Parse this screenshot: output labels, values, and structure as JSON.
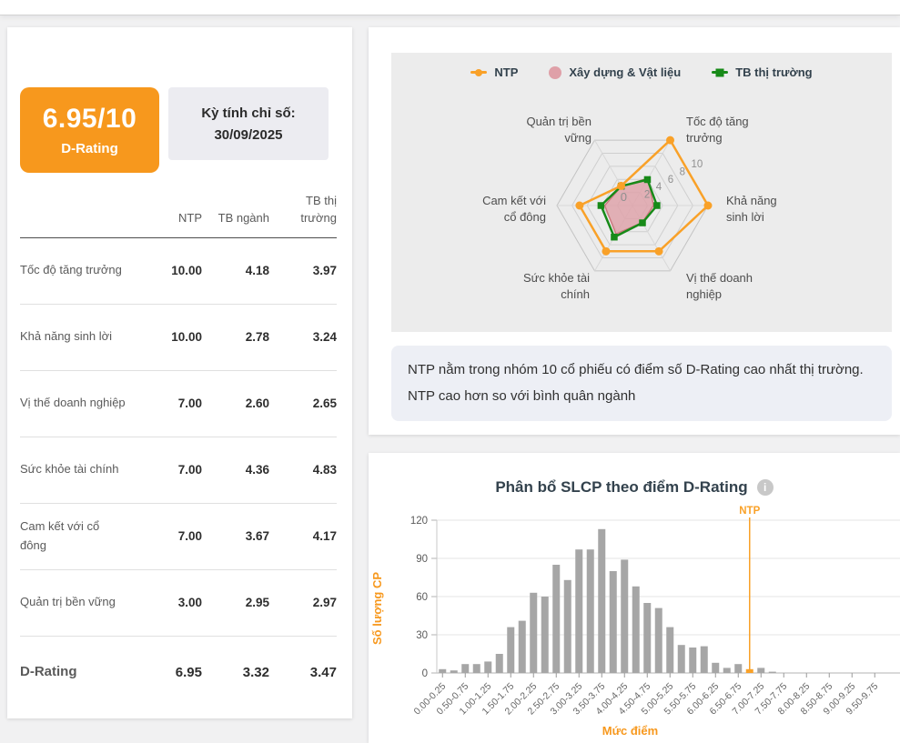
{
  "colors": {
    "accent_orange": "#F7981D",
    "series_orange": "#F9A128",
    "series_pink": "#DFA0A8",
    "series_green": "#178A18",
    "bar_gray": "#A6A6A6",
    "panel_gray": "#ECECEC",
    "note_bg": "#EDEFF5"
  },
  "icons": {
    "info": "i"
  },
  "rating_card": {
    "score": "6.95/10",
    "label": "D-Rating",
    "period_label": "Kỳ tính chỉ số:",
    "period_date": "30/09/2025"
  },
  "table": {
    "col_headers": [
      "NTP",
      "TB ngành",
      "TB thị trường"
    ],
    "rows": [
      {
        "label": "Tốc độ tăng trưởng",
        "values": [
          "10.00",
          "4.18",
          "3.97"
        ]
      },
      {
        "label": "Khả năng sinh lời",
        "values": [
          "10.00",
          "2.78",
          "3.24"
        ]
      },
      {
        "label": "Vị thế doanh nghiệp",
        "values": [
          "7.00",
          "2.60",
          "2.65"
        ]
      },
      {
        "label": "Sức khỏe tài chính",
        "values": [
          "7.00",
          "4.36",
          "4.83"
        ]
      },
      {
        "label": "Cam kết với cổ đông",
        "values": [
          "7.00",
          "3.67",
          "4.17"
        ]
      },
      {
        "label": "Quản trị bền vững",
        "values": [
          "3.00",
          "2.95",
          "2.97"
        ]
      }
    ],
    "footer": {
      "label": "D-Rating",
      "values": [
        "6.95",
        "3.32",
        "3.47"
      ]
    }
  },
  "radar_section": {
    "legend": [
      {
        "name": "NTP",
        "color": "#F9A128",
        "marker": "line-dot"
      },
      {
        "name": "Xây dựng & Vật liệu",
        "color": "#DFA0A8",
        "marker": "circle"
      },
      {
        "name": "TB thị trường",
        "color": "#178A18",
        "marker": "line-square"
      }
    ],
    "note": "NTP nằm trong nhóm 10 cổ phiếu có điểm số D-Rating cao nhất thị trường. NTP cao hơn so với bình quân ngành"
  },
  "chart_data": [
    {
      "type": "radar",
      "axes": [
        "Tốc độ tăng trưởng",
        "Khả năng sinh lời",
        "Vị thế doanh nghiệp",
        "Sức khỏe tài chính",
        "Cam kết với cổ đông",
        "Quản trị bền vững"
      ],
      "axis_label_lines": [
        [
          "Tốc độ tăng",
          "trưởng"
        ],
        [
          "Khả năng",
          "sinh lời"
        ],
        [
          "Vị thế doanh",
          "nghiệp"
        ],
        [
          "Sức khỏe tài",
          "chính"
        ],
        [
          "Cam kết với",
          "cổ đông"
        ],
        [
          "Quản trị bền",
          "vững"
        ]
      ],
      "scale_ticks": [
        0,
        2,
        4,
        6,
        8,
        10
      ],
      "max": 10,
      "series": [
        {
          "name": "Xây dựng & Vật liệu",
          "color": "#DFA0A8",
          "stroke": "#CC7A7F",
          "values": [
            4.18,
            2.78,
            2.6,
            4.36,
            3.67,
            2.95
          ],
          "fill": true
        },
        {
          "name": "TB thị trường",
          "color": "#178A18",
          "values": [
            3.97,
            3.24,
            2.65,
            4.83,
            4.17,
            2.97
          ],
          "marker": "square"
        },
        {
          "name": "NTP",
          "color": "#F9A128",
          "values": [
            10,
            10,
            7,
            7,
            7,
            3
          ],
          "marker": "circle"
        }
      ]
    },
    {
      "type": "bar",
      "title": "Phân bổ SLCP theo điểm D-Rating",
      "xlabel": "Mức điểm",
      "ylabel": "Số lượng CP",
      "ylim": [
        0,
        120
      ],
      "yticks": [
        0,
        30,
        60,
        90,
        120
      ],
      "x_start": 0,
      "bin_width": 0.25,
      "tick_labels": [
        "0.00-0.25",
        "0.50-0.75",
        "1.00-1.25",
        "1.50-1.75",
        "2.00-2.25",
        "2.50-2.75",
        "3.00-3.25",
        "3.50-3.75",
        "4.00-4.25",
        "4.50-4.75",
        "5.00-5.25",
        "5.50-5.75",
        "6.00-6.25",
        "6.50-6.75",
        "7.00-7.25",
        "7.50-7.75",
        "8.00-8.25",
        "8.50-8.75",
        "9.00-9.25",
        "9.50-9.75"
      ],
      "values": [
        3,
        2,
        7,
        7,
        9,
        15,
        36,
        41,
        63,
        60,
        85,
        73,
        97,
        97,
        113,
        80,
        89,
        68,
        55,
        51,
        36,
        22,
        20,
        21,
        8,
        4,
        7,
        3,
        4,
        1,
        0,
        0,
        0,
        0,
        0,
        0,
        0,
        0,
        0,
        0
      ],
      "bar_color": "#A6A6A6",
      "highlight_index": 27,
      "highlight_color": "#F9A128",
      "marker_line": {
        "label": "NTP",
        "x": 6.95,
        "color": "#F9A128"
      }
    }
  ]
}
